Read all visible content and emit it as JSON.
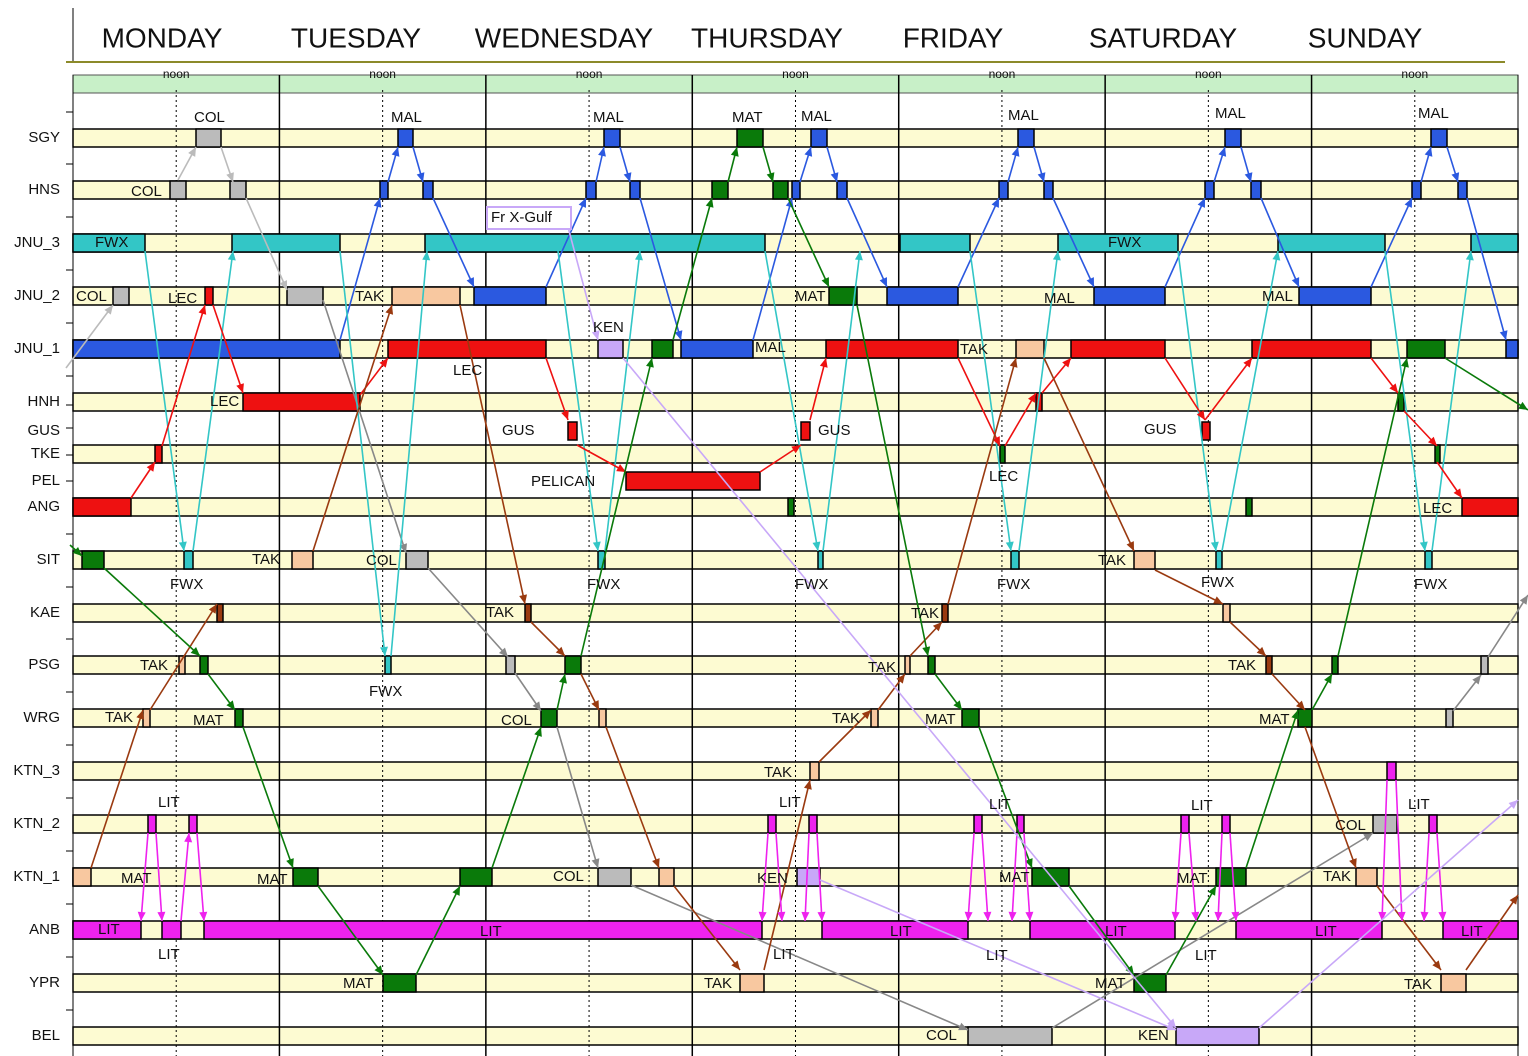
{
  "header": {
    "days": [
      "MONDAY",
      "TUESDAY",
      "WEDNESDAY",
      "THURSDAY",
      "FRIDAY",
      "SATURDAY",
      "SUNDAY"
    ],
    "noon": "noon"
  },
  "ports": [
    "SGY",
    "HNS",
    "JNU_3",
    "JNU_2",
    "JNU_1",
    "HNH",
    "GUS",
    "TKE",
    "PEL",
    "ANG",
    "SIT",
    "KAE",
    "PSG",
    "WRG",
    "KTN_3",
    "KTN_2",
    "KTN_1",
    "ANB",
    "YPR",
    "BEL"
  ],
  "vessel_labels": [
    "COL",
    "COL",
    "FWX",
    "COL",
    "LEC",
    "LEC",
    "TAK",
    "FWX",
    "TAK",
    "TAK",
    "MAT",
    "LIT",
    "MAT",
    "LIT",
    "LIT",
    "MAL",
    "TAK",
    "COL",
    "FWX",
    "MAT",
    "MAT",
    "MAL",
    "Fr X-Gulf",
    "KEN",
    "LEC",
    "GUS",
    "PELICAN",
    "TAK",
    "FWX",
    "COL",
    "COL",
    "LIT",
    "MAT",
    "MAL",
    "MAT",
    "MAL",
    "GUS",
    "FWX",
    "TAK",
    "TAK",
    "LIT",
    "KEN",
    "LIT",
    "TAK",
    "MAL",
    "MAL",
    "TAK",
    "LEC",
    "FWX",
    "TAK",
    "TAK",
    "MAT",
    "LIT",
    "MAT",
    "LIT",
    "LIT",
    "COL",
    "MAL",
    "FWX",
    "MAL",
    "GUS",
    "TAK",
    "FWX",
    "TAK",
    "MAT",
    "LIT",
    "MAT",
    "LIT",
    "LIT",
    "MAT",
    "KEN",
    "MAL",
    "LEC",
    "FWX",
    "LIT",
    "COL",
    "TAK",
    "LIT",
    "LIT",
    "TAK"
  ]
}
